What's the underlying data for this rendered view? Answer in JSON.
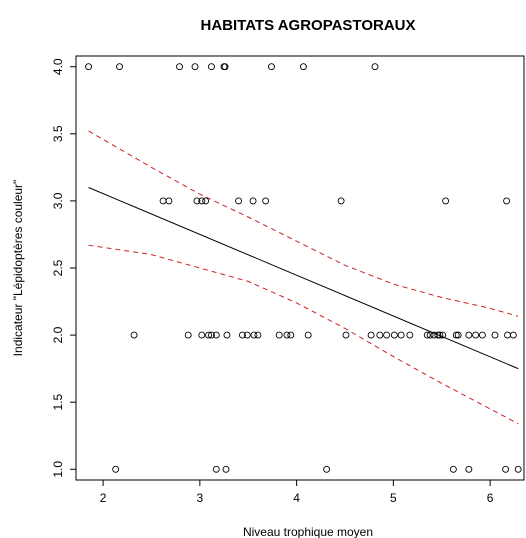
{
  "chart_data": {
    "type": "scatter",
    "title": "HABITATS AGROPASTORAUX",
    "xlabel": "Niveau trophique moyen",
    "ylabel": "Indicateur \"Lépidoptères couleur\"",
    "xlim": [
      1.72,
      6.35
    ],
    "ylim": [
      0.92,
      4.08
    ],
    "x_ticks": [
      2,
      3,
      4,
      5,
      6
    ],
    "x_tick_labels": [
      "2",
      "3",
      "4",
      "5",
      "6"
    ],
    "y_ticks": [
      1.0,
      1.5,
      2.0,
      2.5,
      3.0,
      3.5,
      4.0
    ],
    "y_tick_labels": [
      "1.0",
      "1.5",
      "2.0",
      "2.5",
      "3.0",
      "3.5",
      "4.0"
    ],
    "grid": false,
    "legend": false,
    "points": [
      {
        "x": 1.85,
        "y": 4.0
      },
      {
        "x": 2.17,
        "y": 4.0
      },
      {
        "x": 2.79,
        "y": 4.0
      },
      {
        "x": 2.95,
        "y": 4.0
      },
      {
        "x": 3.12,
        "y": 4.0
      },
      {
        "x": 3.25,
        "y": 4.0
      },
      {
        "x": 3.26,
        "y": 4.0
      },
      {
        "x": 3.74,
        "y": 4.0
      },
      {
        "x": 4.07,
        "y": 4.0
      },
      {
        "x": 4.81,
        "y": 4.0
      },
      {
        "x": 2.62,
        "y": 3.0
      },
      {
        "x": 2.68,
        "y": 3.0
      },
      {
        "x": 2.97,
        "y": 3.0
      },
      {
        "x": 3.02,
        "y": 3.0
      },
      {
        "x": 3.06,
        "y": 3.0
      },
      {
        "x": 3.4,
        "y": 3.0
      },
      {
        "x": 3.55,
        "y": 3.0
      },
      {
        "x": 3.68,
        "y": 3.0
      },
      {
        "x": 4.46,
        "y": 3.0
      },
      {
        "x": 5.54,
        "y": 3.0
      },
      {
        "x": 6.17,
        "y": 3.0
      },
      {
        "x": 2.32,
        "y": 2.0
      },
      {
        "x": 2.88,
        "y": 2.0
      },
      {
        "x": 3.02,
        "y": 2.0
      },
      {
        "x": 3.09,
        "y": 2.0
      },
      {
        "x": 3.12,
        "y": 2.0
      },
      {
        "x": 3.17,
        "y": 2.0
      },
      {
        "x": 3.28,
        "y": 2.0
      },
      {
        "x": 3.44,
        "y": 2.0
      },
      {
        "x": 3.49,
        "y": 2.0
      },
      {
        "x": 3.56,
        "y": 2.0
      },
      {
        "x": 3.6,
        "y": 2.0
      },
      {
        "x": 3.82,
        "y": 2.0
      },
      {
        "x": 3.9,
        "y": 2.0
      },
      {
        "x": 3.94,
        "y": 2.0
      },
      {
        "x": 4.12,
        "y": 2.0
      },
      {
        "x": 4.51,
        "y": 2.0
      },
      {
        "x": 4.77,
        "y": 2.0
      },
      {
        "x": 4.86,
        "y": 2.0
      },
      {
        "x": 4.93,
        "y": 2.0
      },
      {
        "x": 5.01,
        "y": 2.0
      },
      {
        "x": 5.08,
        "y": 2.0
      },
      {
        "x": 5.17,
        "y": 2.0
      },
      {
        "x": 5.35,
        "y": 2.0
      },
      {
        "x": 5.38,
        "y": 2.0
      },
      {
        "x": 5.42,
        "y": 2.0
      },
      {
        "x": 5.46,
        "y": 2.0
      },
      {
        "x": 5.48,
        "y": 2.0
      },
      {
        "x": 5.51,
        "y": 2.0
      },
      {
        "x": 5.65,
        "y": 2.0
      },
      {
        "x": 5.67,
        "y": 2.0
      },
      {
        "x": 5.78,
        "y": 2.0
      },
      {
        "x": 5.85,
        "y": 2.0
      },
      {
        "x": 5.92,
        "y": 2.0
      },
      {
        "x": 6.05,
        "y": 2.0
      },
      {
        "x": 6.18,
        "y": 2.0
      },
      {
        "x": 6.24,
        "y": 2.0
      },
      {
        "x": 2.13,
        "y": 1.0
      },
      {
        "x": 3.17,
        "y": 1.0
      },
      {
        "x": 3.27,
        "y": 1.0
      },
      {
        "x": 4.31,
        "y": 1.0
      },
      {
        "x": 5.62,
        "y": 1.0
      },
      {
        "x": 5.78,
        "y": 1.0
      },
      {
        "x": 6.16,
        "y": 1.0
      },
      {
        "x": 6.29,
        "y": 1.0
      }
    ],
    "regression_line": {
      "x": [
        1.85,
        6.29
      ],
      "y": [
        3.1,
        1.75
      ],
      "color": "#000000"
    },
    "confidence_upper": {
      "x": [
        1.85,
        2.5,
        3.0,
        3.5,
        4.0,
        4.5,
        5.0,
        5.5,
        6.0,
        6.29
      ],
      "y": [
        3.52,
        3.25,
        3.05,
        2.88,
        2.7,
        2.52,
        2.38,
        2.28,
        2.2,
        2.14
      ],
      "color": "#cc2222"
    },
    "confidence_lower": {
      "x": [
        1.85,
        2.5,
        3.0,
        3.5,
        4.0,
        4.5,
        5.0,
        5.5,
        6.0,
        6.29
      ],
      "y": [
        2.67,
        2.6,
        2.5,
        2.4,
        2.24,
        2.05,
        1.84,
        1.64,
        1.45,
        1.34
      ],
      "color": "#cc2222"
    }
  }
}
